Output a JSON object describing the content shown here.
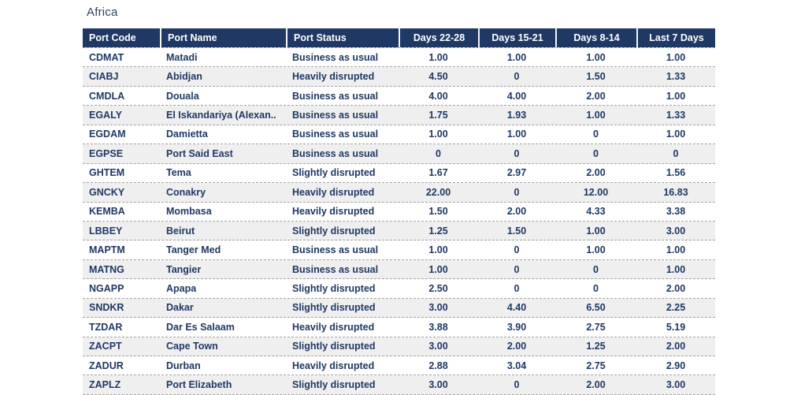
{
  "title": "Africa",
  "colors": {
    "header_bg": "#1f3864",
    "header_text": "#ffffff",
    "body_text": "#1f3864",
    "title_text": "#33455e",
    "stripe": "#efefef",
    "divider": "#a3a3a3"
  },
  "table": {
    "columns": [
      {
        "label": "Port Code",
        "key": "port-code"
      },
      {
        "label": "Port Name",
        "key": "port-name"
      },
      {
        "label": "Port Status",
        "key": "port-status"
      },
      {
        "label": "Days 22-28",
        "key": "days-22-28"
      },
      {
        "label": "Days 15-21",
        "key": "days-15-21"
      },
      {
        "label": "Days 8-14",
        "key": "days-8-14"
      },
      {
        "label": "Last 7 Days",
        "key": "last-7-days"
      }
    ],
    "rows": [
      [
        "CDMAT",
        "Matadi",
        "Business as usual",
        "1.00",
        "1.00",
        "1.00",
        "1.00"
      ],
      [
        "CIABJ",
        "Abidjan",
        "Heavily disrupted",
        "4.50",
        "0",
        "1.50",
        "1.33"
      ],
      [
        "CMDLA",
        "Douala",
        "Business as usual",
        "4.00",
        "4.00",
        "2.00",
        "1.00"
      ],
      [
        "EGALY",
        "El Iskandariya (Alexan..",
        "Business as usual",
        "1.75",
        "1.93",
        "1.00",
        "1.33"
      ],
      [
        "EGDAM",
        "Damietta",
        "Business as usual",
        "1.00",
        "1.00",
        "0",
        "1.00"
      ],
      [
        "EGPSE",
        "Port Said East",
        "Business as usual",
        "0",
        "0",
        "0",
        "0"
      ],
      [
        "GHTEM",
        "Tema",
        "Slightly disrupted",
        "1.67",
        "2.97",
        "2.00",
        "1.56"
      ],
      [
        "GNCKY",
        "Conakry",
        "Heavily disrupted",
        "22.00",
        "0",
        "12.00",
        "16.83"
      ],
      [
        "KEMBA",
        "Mombasa",
        "Heavily disrupted",
        "1.50",
        "2.00",
        "4.33",
        "3.38"
      ],
      [
        "LBBEY",
        "Beirut",
        "Slightly disrupted",
        "1.25",
        "1.50",
        "1.00",
        "3.00"
      ],
      [
        "MAPTM",
        "Tanger Med",
        "Business as usual",
        "1.00",
        "0",
        "1.00",
        "1.00"
      ],
      [
        "MATNG",
        "Tangier",
        "Business as usual",
        "1.00",
        "0",
        "0",
        "1.00"
      ],
      [
        "NGAPP",
        "Apapa",
        "Slightly disrupted",
        "2.50",
        "0",
        "0",
        "2.00"
      ],
      [
        "SNDKR",
        "Dakar",
        "Slightly disrupted",
        "3.00",
        "4.40",
        "6.50",
        "2.25"
      ],
      [
        "TZDAR",
        "Dar Es Salaam",
        "Heavily disrupted",
        "3.88",
        "3.90",
        "2.75",
        "5.19"
      ],
      [
        "ZACPT",
        "Cape Town",
        "Slightly disrupted",
        "3.00",
        "2.00",
        "1.25",
        "2.00"
      ],
      [
        "ZADUR",
        "Durban",
        "Heavily disrupted",
        "2.88",
        "3.04",
        "2.75",
        "2.90"
      ],
      [
        "ZAPLZ",
        "Port Elizabeth",
        "Slightly disrupted",
        "3.00",
        "0",
        "2.00",
        "3.00"
      ]
    ]
  }
}
